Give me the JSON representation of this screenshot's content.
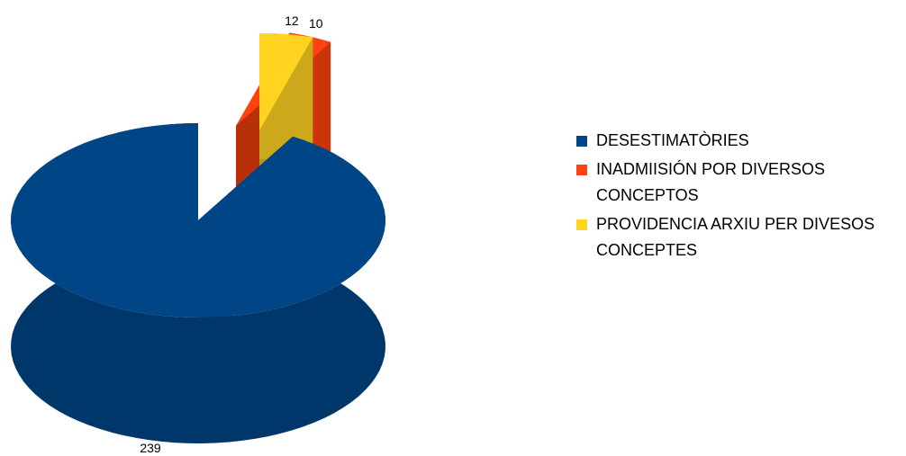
{
  "chart_data": {
    "type": "pie",
    "categories": [
      "DESESTIMATÒRIES",
      "INADMIISIÓN POR DIVERSOS CONCEPTOS",
      "PROVIDENCIA ARXIU PER DIVESOS CONCEPTES"
    ],
    "values": [
      239,
      10,
      12
    ],
    "colors": [
      "#004586",
      "#ff420e",
      "#ffd320"
    ],
    "legend": "right"
  }
}
